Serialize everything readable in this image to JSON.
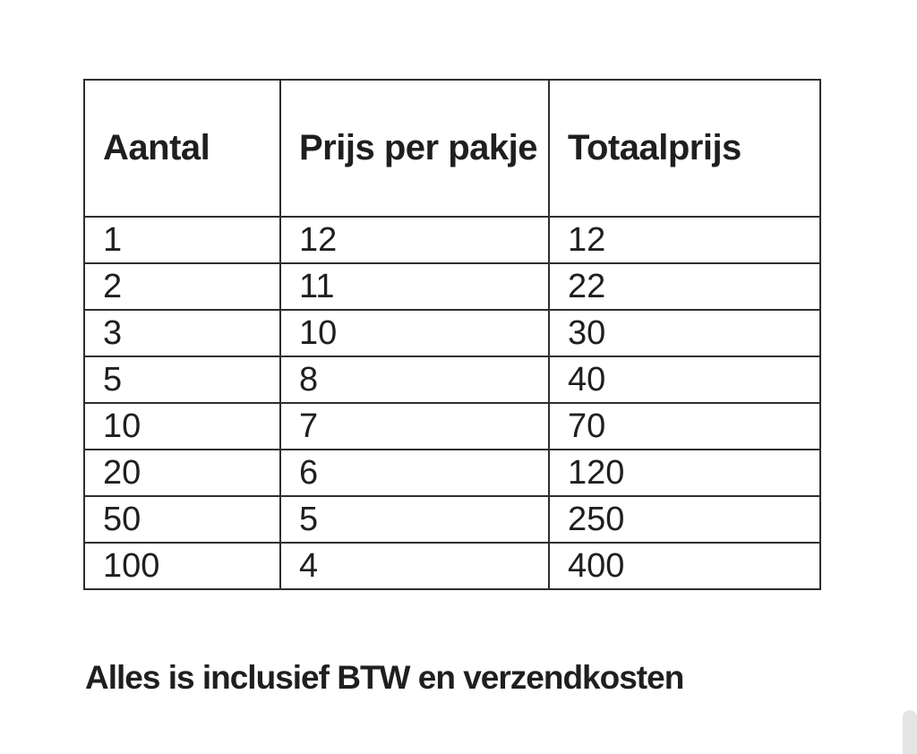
{
  "table": {
    "columns": [
      "Aantal",
      "Prijs per pakje",
      "Totaalprijs"
    ],
    "rows": [
      [
        "1",
        "12",
        "12"
      ],
      [
        "2",
        "11",
        "22"
      ],
      [
        "3",
        "10",
        "30"
      ],
      [
        "5",
        "8",
        "40"
      ],
      [
        "10",
        "7",
        "70"
      ],
      [
        "20",
        "6",
        "120"
      ],
      [
        "50",
        "5",
        "250"
      ],
      [
        "100",
        "4",
        "400"
      ]
    ]
  },
  "caption": "Alles is inclusief BTW en verzendkosten",
  "colors": {
    "text": "#1f1f1f",
    "table_border": "#2e2e2e",
    "background": "#ffffff",
    "scrollbar_thumb": "#e5e5e7"
  }
}
